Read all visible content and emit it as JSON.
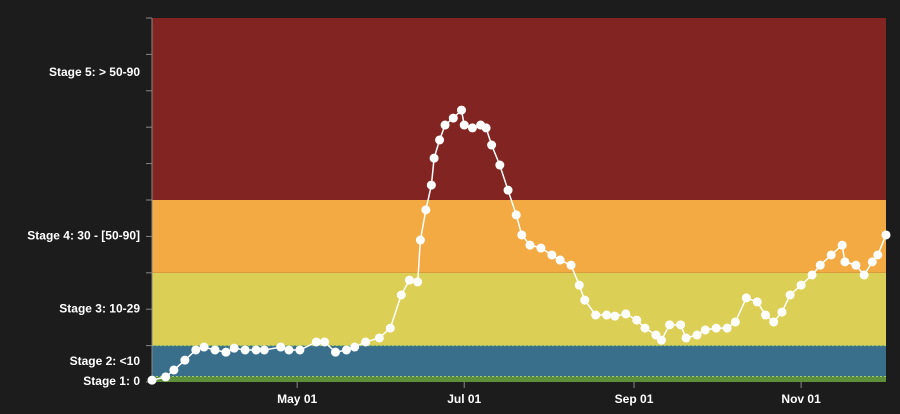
{
  "chart_data": {
    "type": "line",
    "x": [
      8,
      13,
      16,
      20,
      24,
      27,
      31,
      35,
      38,
      42,
      46,
      49,
      55,
      58,
      62,
      68,
      71,
      75,
      79,
      82,
      86,
      91,
      95,
      99,
      102,
      105,
      106,
      108,
      110,
      111,
      113,
      115,
      118,
      121,
      122,
      125,
      128,
      130,
      132,
      135,
      138,
      141,
      143,
      146,
      150,
      154,
      157,
      161,
      164,
      166,
      170,
      174,
      177,
      181,
      185,
      188,
      192,
      194,
      197,
      201,
      203,
      207,
      210,
      214,
      218,
      221,
      225,
      229,
      232,
      235,
      238,
      241,
      245,
      249,
      252,
      256,
      260,
      261,
      265,
      268,
      271,
      273,
      276
    ],
    "values": [
      0.5,
      1.4,
      3.3,
      6,
      8.8,
      9.6,
      8.8,
      8.2,
      9.3,
      8.8,
      8.8,
      8.8,
      9.6,
      8.8,
      8.8,
      11,
      11,
      8.2,
      8.8,
      9.6,
      11,
      12.1,
      14.8,
      23.9,
      28,
      27.5,
      39,
      47.3,
      54.1,
      61.5,
      66.5,
      70.6,
      72.5,
      74.7,
      70.6,
      69.8,
      70.6,
      69.8,
      65.1,
      59.6,
      52.7,
      45.9,
      40.4,
      37.6,
      36.8,
      34.9,
      33.5,
      32.1,
      26.6,
      22.5,
      18.4,
      18.4,
      18.1,
      18.7,
      17,
      14.8,
      12.9,
      11.5,
      15.7,
      15.7,
      12.1,
      12.9,
      14.3,
      14.8,
      14.8,
      16.5,
      23.1,
      22,
      18.4,
      16.5,
      19.2,
      23.9,
      26.6,
      29.4,
      32.1,
      34.9,
      37.6,
      33,
      32.1,
      29.4,
      33,
      34.9,
      40.4
    ],
    "color": "#ffffff",
    "xlim": [
      8,
      276
    ],
    "xticks": [
      {
        "value": 61,
        "label": "May 01"
      },
      {
        "value": 122,
        "label": "Jul 01"
      },
      {
        "value": 184,
        "label": "Sep 01"
      },
      {
        "value": 245,
        "label": "Nov 01"
      }
    ],
    "ylim": [
      0,
      100
    ],
    "yticks": [
      {
        "value": 85,
        "label": "Stage 5: > 50-90"
      },
      {
        "value": 40,
        "label": "Stage 4: 30 - [50-90]"
      },
      {
        "value": 20,
        "label": "Stage 3: 10-29"
      },
      {
        "value": 5.5,
        "label": "Stage 2: <10"
      },
      {
        "value": 0,
        "label": "Stage 1: 0"
      }
    ],
    "minor_yticks": [
      0,
      10,
      20,
      30,
      40,
      50,
      60,
      70,
      80,
      90,
      100
    ],
    "bands": [
      {
        "from": 0,
        "to": 1.5,
        "color": "#5e8f3a"
      },
      {
        "from": 1.5,
        "to": 10,
        "color": "#3a6f8c"
      },
      {
        "from": 10,
        "to": 30,
        "color": "#dccf55"
      },
      {
        "from": 30,
        "to": 50,
        "color": "#f3aa42"
      },
      {
        "from": 50,
        "to": 100,
        "color": "#822522"
      }
    ]
  }
}
